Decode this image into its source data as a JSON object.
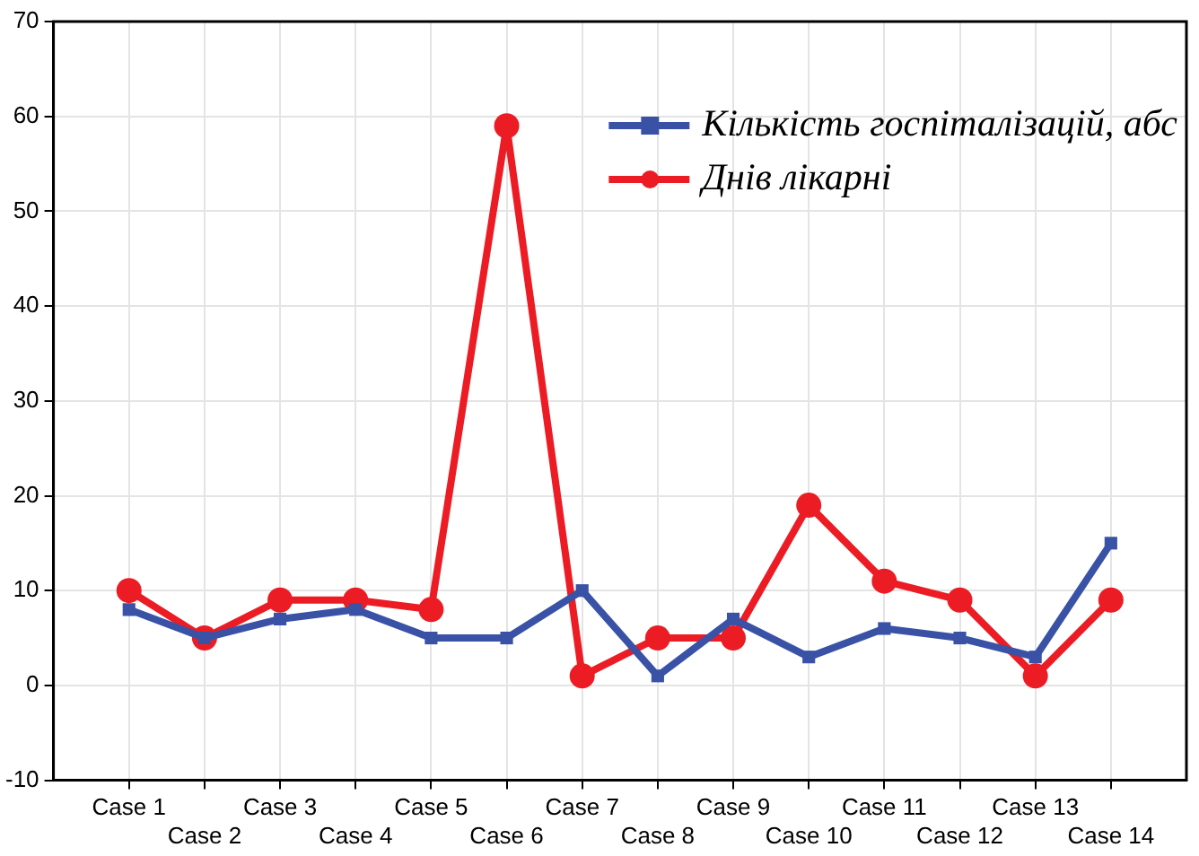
{
  "chart_data": {
    "type": "line",
    "categories": [
      "Case 1",
      "Case 2",
      "Case 3",
      "Case 4",
      "Case 5",
      "Case 6",
      "Case 7",
      "Case 8",
      "Case 9",
      "Case 10",
      "Case 11",
      "Case 12",
      "Case 13",
      "Case 14"
    ],
    "series": [
      {
        "name": "Кількість госпіталізацій, абс",
        "color": "#3a52a6",
        "marker": "square",
        "values": [
          8,
          5,
          7,
          8,
          5,
          5,
          10,
          1,
          7,
          3,
          6,
          5,
          3,
          15
        ]
      },
      {
        "name": "Днів лікарні",
        "color": "#ec1c24",
        "marker": "circle",
        "values": [
          10,
          5,
          9,
          9,
          8,
          59,
          1,
          5,
          5,
          19,
          11,
          9,
          1,
          9
        ]
      }
    ],
    "ylim": [
      -10,
      70
    ],
    "yticks": [
      -10,
      0,
      10,
      20,
      30,
      40,
      50,
      60,
      70
    ],
    "grid": true,
    "legend": "top right",
    "line_style": "solid"
  }
}
